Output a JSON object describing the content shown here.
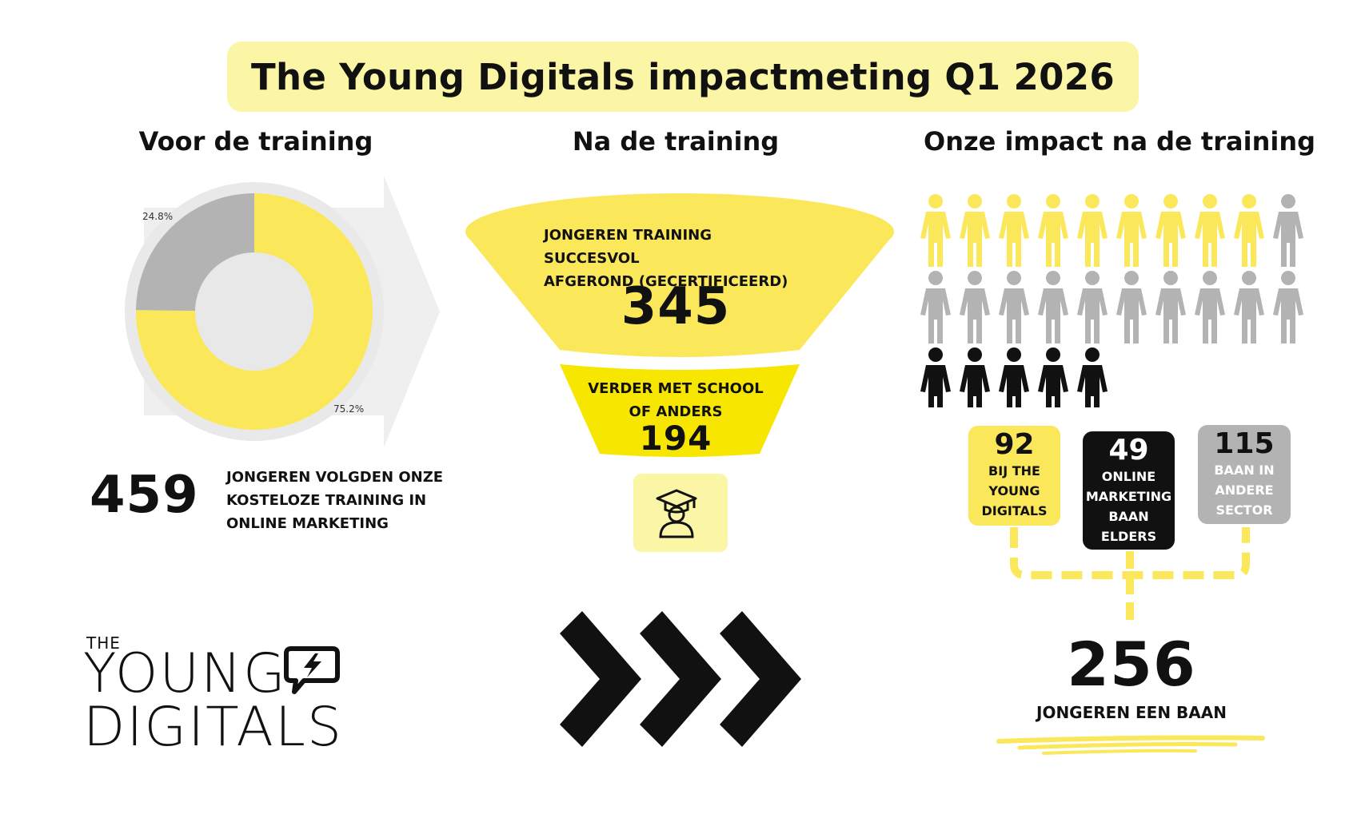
{
  "title": "The Young Digitals impactmeting Q1 2026",
  "columns": {
    "before": "Voor de training",
    "after": "Na de training",
    "impact": "Onze impact na de training"
  },
  "donut": {
    "label_small": "24.8%",
    "label_large": "75.2%",
    "share_large": 0.752,
    "share_small": 0.248,
    "color_large": "#fbe75a",
    "color_small": "#b3b3b3"
  },
  "participants": {
    "value": "459",
    "text_line1": "JONGEREN VOLGDEN ONZE",
    "text_line2": "KOSTELOZE TRAINING IN",
    "text_line3": "ONLINE MARKETING"
  },
  "funnel": {
    "top_line1": "JONGEREN TRAINING SUCCESVOL",
    "top_line2": "AFGEROND (GECERTIFICEERD)",
    "top_value": "345",
    "mid_line1": "VERDER MET SCHOOL",
    "mid_line2": "OF ANDERS",
    "mid_value": "194",
    "icon": "graduate-icon"
  },
  "people": {
    "yellow_count": 9,
    "gray_count": 11,
    "black_count": 5,
    "colors": {
      "yellow": "#fbe75a",
      "gray": "#b3b3b3",
      "black": "#111111"
    }
  },
  "outcomes": [
    {
      "value": "92",
      "line1": "BIJ THE",
      "line2": "YOUNG",
      "line3": "DIGITALS",
      "line4": ""
    },
    {
      "value": "49",
      "line1": "ONLINE",
      "line2": "MARKETING",
      "line3": "BAAN",
      "line4": "ELDERS"
    },
    {
      "value": "115",
      "line1": "BAAN IN",
      "line2": "ANDERE",
      "line3": "SECTOR",
      "line4": ""
    }
  ],
  "jobs": {
    "value": "256",
    "label": "JONGEREN EEN BAAN"
  },
  "logo": {
    "line1": "THE",
    "line2": "YOUNG",
    "line3": "DIGITALS"
  },
  "colors": {
    "accent": "#fbe75a",
    "title_bg": "#fbf5a6",
    "gray": "#b3b3b3",
    "dark": "#111111"
  }
}
